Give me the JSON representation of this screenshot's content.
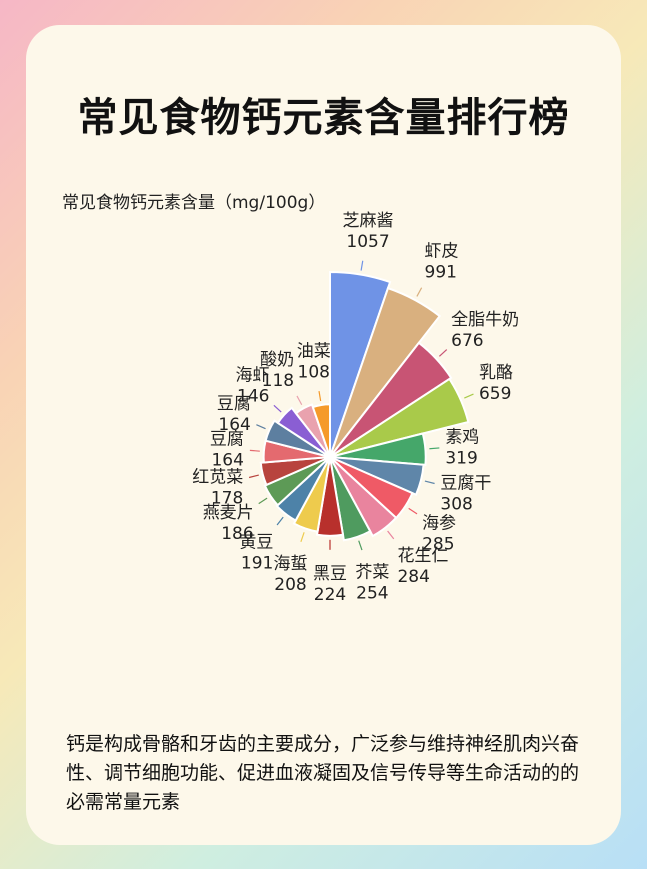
{
  "title": "常见食物钙元素含量排行榜",
  "footer_text": "钙是构成骨骼和牙齿的主要成分，广泛参与维持神经肌肉兴奋性、调节细胞功能、促进血液凝固及信号传导等生命活动的的必需常量元素",
  "chart_data": {
    "type": "pie",
    "subtitle": "常见食物钙元素含量（mg/100g）",
    "chart_style": "rose (nightingale) — equal angles, radius scaled by value",
    "categories": [
      "芝麻酱",
      "虾皮",
      "全脂牛奶",
      "乳酪",
      "素鸡",
      "豆腐干",
      "海参",
      "花生仁",
      "芥菜",
      "黑豆",
      "海蜇",
      "黄豆",
      "燕麦片",
      "红苋菜",
      "豆腐",
      "豆腐",
      "海虾",
      "酸奶",
      "油菜"
    ],
    "values": [
      1057,
      991,
      676,
      659,
      319,
      308,
      285,
      284,
      254,
      224,
      208,
      191,
      186,
      178,
      164,
      164,
      146,
      118,
      108
    ],
    "colors": [
      "#6f93e6",
      "#d9b07f",
      "#c85474",
      "#a9ca4a",
      "#45a76a",
      "#5f86a9",
      "#ef5a66",
      "#e9849e",
      "#4f9b5f",
      "#b8302c",
      "#eecb4d",
      "#4d82a8",
      "#5d9a56",
      "#b8443e",
      "#e46a6f",
      "#5d7fa0",
      "#8a5ed3",
      "#e9a2ae",
      "#f59a2a"
    ],
    "start_at": "12 o'clock, clockwise"
  }
}
